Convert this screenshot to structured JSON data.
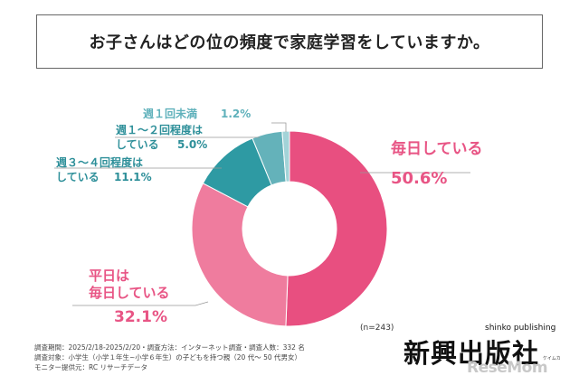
{
  "title": "お子さんはどの位の頻度で家庭学習をしていますか。",
  "chart_data": {
    "type": "pie",
    "donut": true,
    "categories": [
      "毎日している",
      "平日は毎日している",
      "週３～４回程度はしている",
      "週１～２回程度はしている",
      "週１回未満"
    ],
    "values": [
      50.6,
      32.1,
      11.1,
      5.0,
      1.2
    ],
    "value_labels": [
      "50.6%",
      "32.1%",
      "11.1%",
      "5.0%",
      "1.2%"
    ],
    "colors": [
      "#e84f80",
      "#ef7c9e",
      "#2e9aa3",
      "#64b2ba",
      "#a3d3d8"
    ],
    "label_colors": [
      "#e85585",
      "#e85585",
      "#2d8f99",
      "#2d8f99",
      "#5fb1bb"
    ],
    "sample": "(n=243)"
  },
  "labels": {
    "mainichi": "毎日している",
    "heijitsu_1": "平日は",
    "heijitsu_2": "毎日している",
    "shu34_1": "週３～４回程度は",
    "shu34_2": "している",
    "shu12_1": "週１～２回程度は",
    "shu12_2": "している",
    "shu1": "週１回未満"
  },
  "footnote": [
    "調査期間：2025/2/18-2025/2/20・調査方法：インターネット調査・調査人数：332 名",
    "調査対象：小学生（小学１年生~小学６年生）の子どもを持つ親（20 代～ 50 代男女）",
    "モニター提供元：RC リサーチデータ"
  ],
  "logo": {
    "main": "新興出版社",
    "sub": "shinko publishing",
    "small": "ケイムカ"
  },
  "watermark": "ReseMom"
}
